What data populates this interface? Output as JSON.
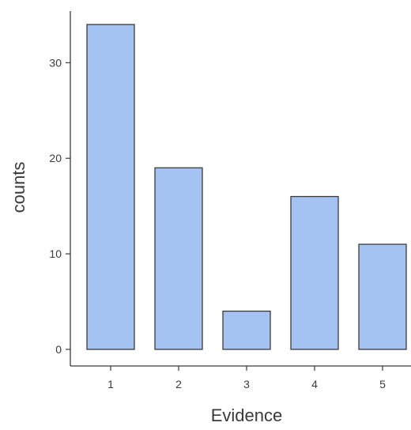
{
  "chart_data": {
    "type": "bar",
    "categories": [
      "1",
      "2",
      "3",
      "4",
      "5"
    ],
    "values": [
      34,
      19,
      4,
      16,
      11
    ],
    "xlabel": "Evidence",
    "ylabel": "counts",
    "ylim": [
      0,
      35
    ],
    "yticks": [
      0,
      10,
      20,
      30
    ],
    "grid": false,
    "legend": "none",
    "colors": {
      "bar_fill": "#a4c3f2",
      "bar_stroke": "#3b3b3b",
      "axis": "#3b3b3b",
      "text": "#3a3a3a"
    }
  }
}
